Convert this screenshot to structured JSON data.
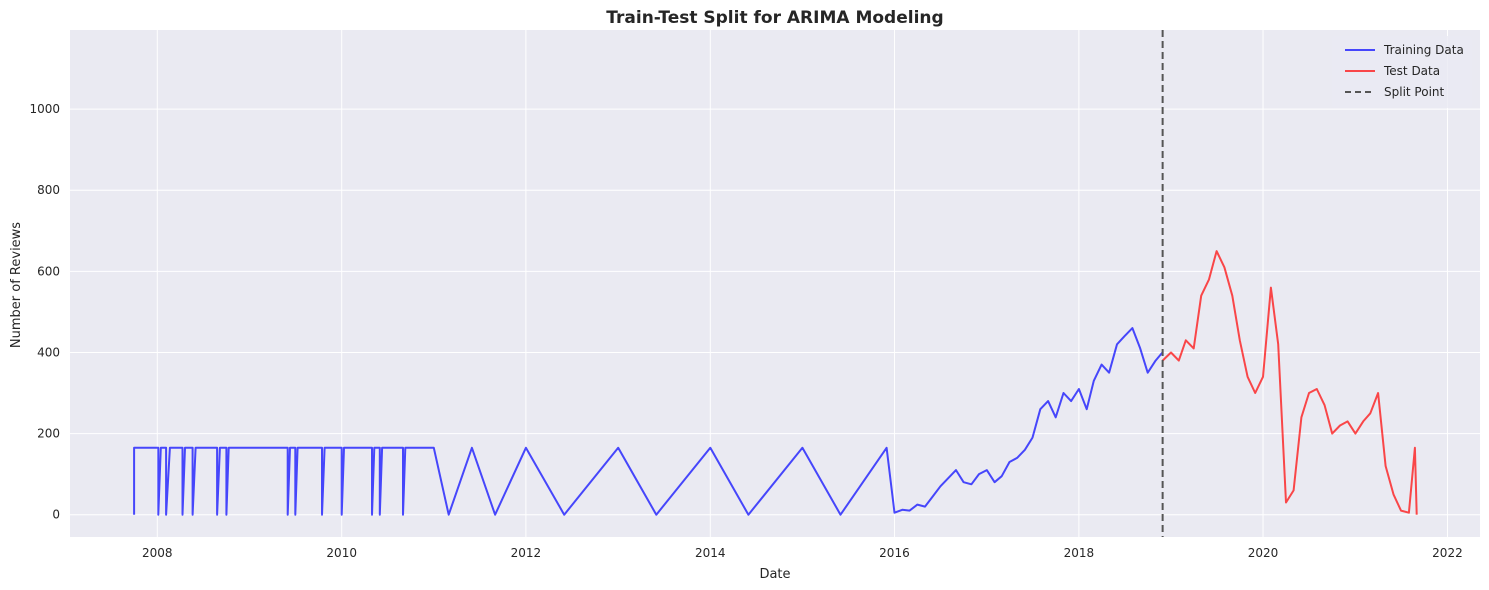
{
  "chart_data": {
    "type": "line",
    "title": "Train-Test Split for ARIMA Modeling",
    "xlabel": "Date",
    "ylabel": "Number of Reviews",
    "x_ticks": [
      "2008",
      "2010",
      "2012",
      "2014",
      "2016",
      "2018",
      "2020",
      "2022"
    ],
    "y_ticks": [
      0,
      200,
      400,
      600,
      800,
      1000
    ],
    "xlim": [
      "2007-01-20",
      "2022-05-10"
    ],
    "ylim": [
      -55,
      1195
    ],
    "grid": true,
    "legend_position": "top-right",
    "colors": {
      "train": "#0000ff",
      "test": "#ff0000",
      "split": "#555555",
      "plot_bg": "#eaeaf2",
      "grid": "#ffffff"
    },
    "split_point": "2018-11-29",
    "series": [
      {
        "name": "Training Data",
        "points": [
          [
            "2007-10-01",
            0
          ],
          [
            "2007-10-01",
            165
          ],
          [
            "2008-01-05",
            165
          ],
          [
            "2008-01-05",
            0
          ],
          [
            "2008-01-15",
            165
          ],
          [
            "2008-02-05",
            165
          ],
          [
            "2008-02-05",
            0
          ],
          [
            "2008-02-20",
            165
          ],
          [
            "2008-04-10",
            165
          ],
          [
            "2008-04-10",
            0
          ],
          [
            "2008-04-20",
            165
          ],
          [
            "2008-05-20",
            165
          ],
          [
            "2008-05-20",
            0
          ],
          [
            "2008-06-01",
            165
          ],
          [
            "2008-08-25",
            165
          ],
          [
            "2008-08-25",
            0
          ],
          [
            "2008-09-05",
            165
          ],
          [
            "2008-10-01",
            165
          ],
          [
            "2008-10-01",
            0
          ],
          [
            "2008-10-10",
            165
          ],
          [
            "2009-06-01",
            165
          ],
          [
            "2009-06-01",
            0
          ],
          [
            "2009-06-10",
            165
          ],
          [
            "2009-07-01",
            165
          ],
          [
            "2009-07-01",
            0
          ],
          [
            "2009-07-10",
            165
          ],
          [
            "2009-10-15",
            165
          ],
          [
            "2009-10-15",
            0
          ],
          [
            "2009-10-25",
            165
          ],
          [
            "2010-01-01",
            165
          ],
          [
            "2010-01-01",
            0
          ],
          [
            "2010-01-10",
            165
          ],
          [
            "2010-05-01",
            165
          ],
          [
            "2010-05-01",
            0
          ],
          [
            "2010-05-10",
            165
          ],
          [
            "2010-06-01",
            165
          ],
          [
            "2010-06-01",
            0
          ],
          [
            "2010-06-10",
            165
          ],
          [
            "2010-09-01",
            165
          ],
          [
            "2010-09-01",
            0
          ],
          [
            "2010-09-10",
            165
          ],
          [
            "2010-11-01",
            165
          ],
          [
            "2011-01-01",
            165
          ],
          [
            "2011-03-01",
            0
          ],
          [
            "2011-06-01",
            165
          ],
          [
            "2011-09-01",
            0
          ],
          [
            "2012-01-01",
            165
          ],
          [
            "2012-06-01",
            0
          ],
          [
            "2013-01-01",
            165
          ],
          [
            "2013-06-01",
            0
          ],
          [
            "2014-01-01",
            165
          ],
          [
            "2014-06-01",
            0
          ],
          [
            "2015-01-01",
            165
          ],
          [
            "2015-06-01",
            0
          ],
          [
            "2015-12-01",
            165
          ],
          [
            "2016-01-01",
            5
          ],
          [
            "2016-02-01",
            12
          ],
          [
            "2016-03-01",
            10
          ],
          [
            "2016-04-01",
            25
          ],
          [
            "2016-05-01",
            20
          ],
          [
            "2016-06-01",
            45
          ],
          [
            "2016-07-01",
            70
          ],
          [
            "2016-08-01",
            90
          ],
          [
            "2016-09-01",
            110
          ],
          [
            "2016-10-01",
            80
          ],
          [
            "2016-11-01",
            75
          ],
          [
            "2016-12-01",
            100
          ],
          [
            "2017-01-01",
            110
          ],
          [
            "2017-02-01",
            80
          ],
          [
            "2017-03-01",
            95
          ],
          [
            "2017-04-01",
            130
          ],
          [
            "2017-05-01",
            140
          ],
          [
            "2017-06-01",
            160
          ],
          [
            "2017-07-01",
            190
          ],
          [
            "2017-08-01",
            260
          ],
          [
            "2017-09-01",
            280
          ],
          [
            "2017-10-01",
            240
          ],
          [
            "2017-11-01",
            300
          ],
          [
            "2017-12-01",
            280
          ],
          [
            "2018-01-01",
            310
          ],
          [
            "2018-02-01",
            260
          ],
          [
            "2018-03-01",
            330
          ],
          [
            "2018-04-01",
            370
          ],
          [
            "2018-05-01",
            350
          ],
          [
            "2018-06-01",
            420
          ],
          [
            "2018-07-01",
            440
          ],
          [
            "2018-08-01",
            460
          ],
          [
            "2018-09-01",
            410
          ],
          [
            "2018-10-01",
            350
          ],
          [
            "2018-11-01",
            380
          ],
          [
            "2018-11-28",
            400
          ]
        ]
      },
      {
        "name": "Test Data",
        "points": [
          [
            "2018-11-29",
            380
          ],
          [
            "2019-01-01",
            400
          ],
          [
            "2019-02-01",
            380
          ],
          [
            "2019-03-01",
            430
          ],
          [
            "2019-04-01",
            410
          ],
          [
            "2019-05-01",
            540
          ],
          [
            "2019-06-01",
            580
          ],
          [
            "2019-07-01",
            650
          ],
          [
            "2019-08-01",
            610
          ],
          [
            "2019-09-01",
            540
          ],
          [
            "2019-10-01",
            430
          ],
          [
            "2019-11-01",
            340
          ],
          [
            "2019-12-01",
            300
          ],
          [
            "2020-01-01",
            340
          ],
          [
            "2020-02-01",
            560
          ],
          [
            "2020-03-01",
            420
          ],
          [
            "2020-04-01",
            30
          ],
          [
            "2020-05-01",
            60
          ],
          [
            "2020-06-01",
            240
          ],
          [
            "2020-07-01",
            300
          ],
          [
            "2020-08-01",
            310
          ],
          [
            "2020-09-01",
            270
          ],
          [
            "2020-10-01",
            200
          ],
          [
            "2020-11-01",
            220
          ],
          [
            "2020-12-01",
            230
          ],
          [
            "2021-01-01",
            200
          ],
          [
            "2021-02-01",
            230
          ],
          [
            "2021-03-01",
            250
          ],
          [
            "2021-04-01",
            300
          ],
          [
            "2021-05-01",
            120
          ],
          [
            "2021-06-01",
            50
          ],
          [
            "2021-07-01",
            10
          ],
          [
            "2021-08-01",
            5
          ],
          [
            "2021-08-25",
            165
          ],
          [
            "2021-09-01",
            0
          ]
        ]
      },
      {
        "name": "Split Point",
        "style": "dashed"
      }
    ]
  }
}
